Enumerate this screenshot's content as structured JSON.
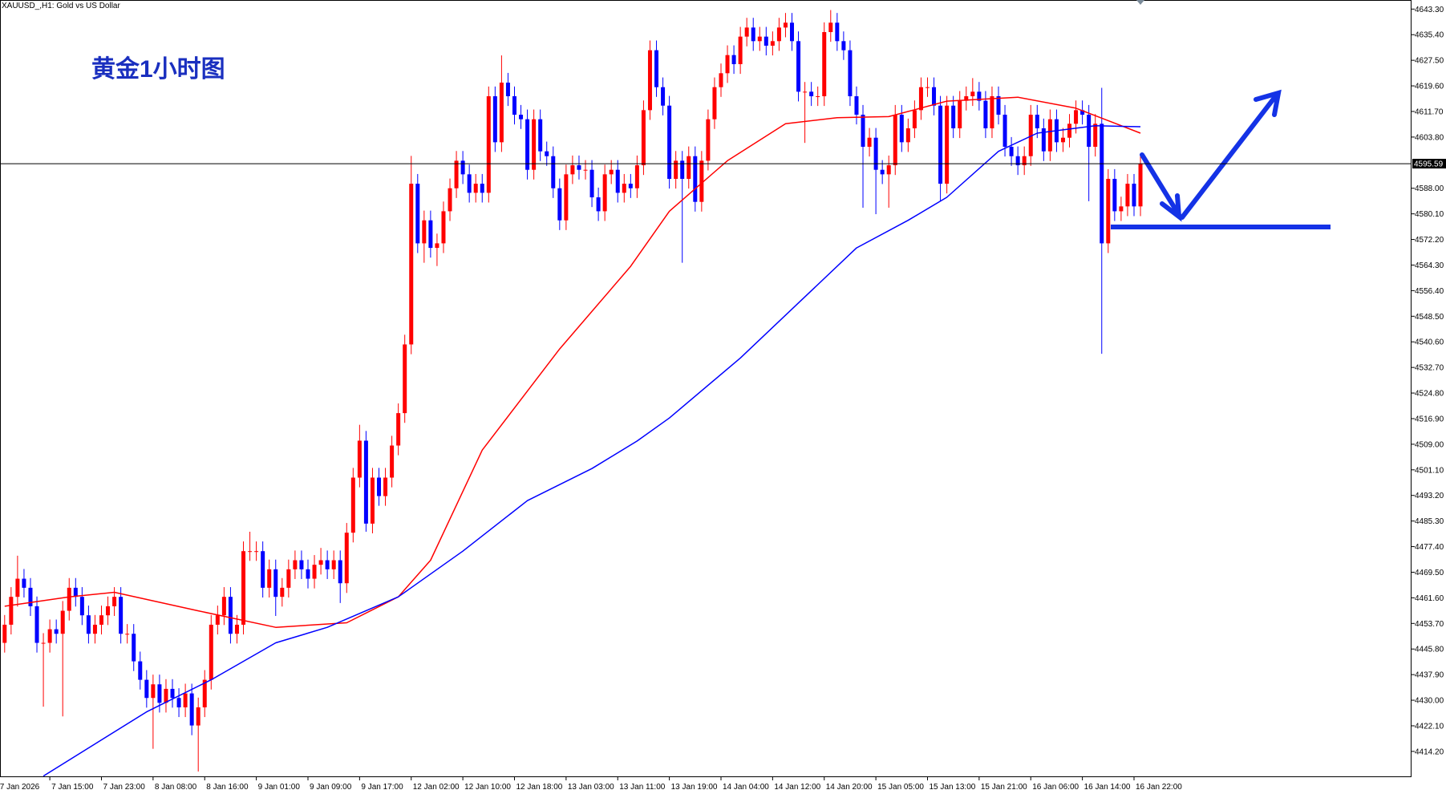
{
  "chart_data": {
    "type": "candlestick",
    "title": "XAUUSD_,H1:  Gold vs US Dollar",
    "annotation": "黄金1小时图",
    "up_color": "#ff0000",
    "down_color": "#0000ff",
    "open": [
      4447.7,
      4453.3,
      4461.9,
      4467.5,
      4464.7,
      4459.0,
      4447.7,
      4447.7,
      4451.9,
      4450.5,
      4457.6,
      4464.7,
      4461.9,
      4456.2,
      4450.5,
      4453.3,
      4456.2,
      4459.0,
      4461.9,
      4450.5,
      4450.5,
      4442.0,
      4436.3,
      4430.7,
      4434.9,
      4429.2,
      4433.5,
      4430.7,
      4427.8,
      4432.1,
      4422.2,
      4427.8,
      4436.3,
      4453.3,
      4456.2,
      4461.9,
      4450.5,
      4453.3,
      4476.0,
      4476.0,
      4476.0,
      4464.7,
      4470.4,
      4461.9,
      4464.7,
      4470.4,
      4473.2,
      4470.4,
      4467.5,
      4471.8,
      4473.2,
      4470.4,
      4473.2,
      4466.1,
      4481.7,
      4498.7,
      4510.1,
      4484.5,
      4498.7,
      4493.0,
      4498.7,
      4508.6,
      4518.6,
      4539.8,
      4589.4,
      4571.0,
      4578.1,
      4569.6,
      4571.0,
      4580.9,
      4588.0,
      4596.5,
      4592.3,
      4586.6,
      4589.4,
      4586.6,
      4616.4,
      4602.2,
      4620.6,
      4616.4,
      4610.7,
      4609.3,
      4593.7,
      4609.3,
      4599.4,
      4597.9,
      4588.0,
      4578.1,
      4592.3,
      4595.1,
      4593.7,
      4593.7,
      4585.2,
      4580.9,
      4592.3,
      4593.7,
      4586.6,
      4589.4,
      4588.0,
      4595.1,
      4612.1,
      4630.6,
      4619.2,
      4613.5,
      4590.9,
      4596.5,
      4590.9,
      4597.9,
      4583.8,
      4596.5,
      4609.3,
      4619.2,
      4623.5,
      4629.1,
      4626.3,
      4634.8,
      4637.6,
      4633.4,
      4634.8,
      4632.0,
      4633.4,
      4637.6,
      4639.1,
      4633.4,
      4617.8,
      4617.8,
      4616.4,
      4616.4,
      4636.2,
      4639.1,
      4633.4,
      4630.6,
      4616.4,
      4610.7,
      4600.8,
      4603.6,
      4593.7,
      4592.3,
      4595.1,
      4610.7,
      4602.2,
      4606.5,
      4612.1,
      4619.2,
      4619.2,
      4613.5,
      4589.4,
      4613.5,
      4606.5,
      4615.0,
      4616.4,
      4617.8,
      4615.0,
      4606.5,
      4616.4,
      4610.7,
      4600.8,
      4597.9,
      4595.1,
      4597.9,
      4610.7,
      4606.5,
      4599.4,
      4609.3,
      4602.2,
      4603.6,
      4607.9,
      4612.1,
      4610.7,
      4600.8,
      4607.9,
      4571.0,
      4590.9,
      4580.9,
      4582.4,
      4589.4,
      4582.4
    ],
    "high": [
      4456.3,
      4464.9,
      4474.6,
      4470.5,
      4467.7,
      4462.0,
      4450.7,
      4454.9,
      4454.9,
      4460.6,
      4467.7,
      4467.7,
      4464.9,
      4459.2,
      4456.3,
      4459.2,
      4462.0,
      4464.9,
      4464.9,
      4453.5,
      4453.5,
      4445.0,
      4439.3,
      4437.9,
      4437.9,
      4436.5,
      4436.5,
      4433.7,
      4435.1,
      4435.1,
      4430.8,
      4439.3,
      4456.3,
      4459.2,
      4464.9,
      4464.9,
      4456.3,
      4479.0,
      4482.0,
      4479.0,
      4479.0,
      4473.4,
      4473.4,
      4467.7,
      4473.4,
      4476.2,
      4476.2,
      4473.4,
      4474.8,
      4477.0,
      4476.2,
      4476.2,
      4476.2,
      4484.7,
      4501.7,
      4515.0,
      4513.1,
      4501.7,
      4501.7,
      4501.7,
      4511.6,
      4521.6,
      4542.8,
      4598.0,
      4592.4,
      4581.1,
      4581.1,
      4574.0,
      4583.9,
      4591.0,
      4599.5,
      4599.5,
      4595.3,
      4592.4,
      4592.4,
      4619.4,
      4619.4,
      4629.0,
      4623.6,
      4619.4,
      4613.7,
      4612.3,
      4612.3,
      4612.3,
      4602.4,
      4600.9,
      4591.0,
      4595.3,
      4598.1,
      4598.1,
      4596.7,
      4596.7,
      4588.2,
      4595.3,
      4596.7,
      4596.7,
      4592.4,
      4592.4,
      4598.1,
      4615.1,
      4633.6,
      4633.6,
      4622.2,
      4616.5,
      4599.5,
      4599.5,
      4600.9,
      4600.9,
      4599.5,
      4612.3,
      4622.2,
      4626.5,
      4632.1,
      4632.1,
      4637.8,
      4640.6,
      4640.6,
      4637.8,
      4637.8,
      4636.4,
      4640.6,
      4642.1,
      4642.1,
      4636.4,
      4620.8,
      4620.8,
      4619.4,
      4639.2,
      4643.0,
      4642.1,
      4636.4,
      4633.6,
      4619.4,
      4613.7,
      4606.6,
      4606.6,
      4596.7,
      4598.1,
      4613.7,
      4613.7,
      4609.5,
      4615.1,
      4622.2,
      4622.2,
      4622.2,
      4616.5,
      4616.5,
      4616.5,
      4618.0,
      4619.4,
      4622.0,
      4620.8,
      4618.0,
      4619.4,
      4619.4,
      4613.7,
      4603.8,
      4600.9,
      4600.9,
      4613.7,
      4613.7,
      4609.5,
      4612.3,
      4612.3,
      4606.6,
      4610.9,
      4615.1,
      4615.1,
      4613.7,
      4610.9,
      4619.0,
      4593.9,
      4593.9,
      4585.4,
      4592.4,
      4592.4,
      4598.6
    ],
    "low": [
      4444.7,
      4450.3,
      4458.9,
      4461.7,
      4456.0,
      4444.7,
      4428.0,
      4444.7,
      4447.5,
      4425.0,
      4454.6,
      4458.9,
      4453.2,
      4447.5,
      4447.5,
      4450.3,
      4453.2,
      4456.0,
      4447.5,
      4447.5,
      4439.0,
      4433.3,
      4427.7,
      4415.0,
      4426.2,
      4426.2,
      4427.7,
      4424.8,
      4424.8,
      4419.2,
      4408.0,
      4424.8,
      4433.3,
      4450.3,
      4453.2,
      4447.5,
      4447.5,
      4450.3,
      4473.0,
      4473.0,
      4461.7,
      4461.7,
      4456.0,
      4458.9,
      4461.7,
      4467.4,
      4467.4,
      4464.5,
      4464.5,
      4468.8,
      4467.4,
      4467.4,
      4460.0,
      4463.1,
      4478.7,
      4495.7,
      4482.0,
      4481.5,
      4490.0,
      4490.0,
      4495.7,
      4505.6,
      4515.6,
      4536.8,
      4568.0,
      4565.0,
      4566.6,
      4564.0,
      4568.0,
      4577.9,
      4585.0,
      4589.3,
      4583.6,
      4583.6,
      4583.6,
      4583.6,
      4599.2,
      4599.2,
      4613.4,
      4607.7,
      4606.3,
      4590.7,
      4590.7,
      4596.4,
      4594.9,
      4585.0,
      4575.1,
      4575.1,
      4589.3,
      4590.7,
      4590.7,
      4582.2,
      4577.9,
      4577.9,
      4589.3,
      4583.6,
      4583.6,
      4585.0,
      4585.0,
      4592.1,
      4609.1,
      4616.2,
      4610.5,
      4587.9,
      4587.9,
      4565.0,
      4587.9,
      4580.8,
      4580.8,
      4593.5,
      4606.3,
      4616.2,
      4620.5,
      4623.3,
      4623.3,
      4631.8,
      4630.4,
      4630.4,
      4629.0,
      4629.0,
      4630.4,
      4634.6,
      4630.4,
      4614.8,
      4602.0,
      4613.4,
      4613.4,
      4613.4,
      4633.2,
      4630.4,
      4627.6,
      4613.4,
      4607.7,
      4582.0,
      4597.8,
      4580.0,
      4589.3,
      4582.0,
      4592.1,
      4599.2,
      4599.2,
      4603.5,
      4609.1,
      4616.2,
      4610.5,
      4584.0,
      4586.4,
      4603.5,
      4603.5,
      4612.0,
      4613.4,
      4612.0,
      4603.5,
      4603.5,
      4607.7,
      4597.8,
      4594.9,
      4592.1,
      4592.1,
      4594.9,
      4603.5,
      4596.4,
      4596.4,
      4599.2,
      4599.2,
      4600.6,
      4604.9,
      4607.7,
      4584.0,
      4597.8,
      4536.9,
      4568.0,
      4577.9,
      4577.9,
      4579.4,
      4579.4,
      4579.4
    ],
    "close": [
      4453.3,
      4461.9,
      4467.5,
      4464.7,
      4459.0,
      4447.7,
      4447.7,
      4451.9,
      4450.5,
      4457.6,
      4464.7,
      4461.9,
      4456.2,
      4450.5,
      4453.3,
      4456.2,
      4459.0,
      4461.9,
      4450.5,
      4450.5,
      4442.0,
      4436.3,
      4430.7,
      4434.9,
      4429.2,
      4433.5,
      4430.7,
      4427.8,
      4432.1,
      4422.2,
      4427.8,
      4436.3,
      4453.3,
      4456.2,
      4461.9,
      4450.5,
      4453.3,
      4476.0,
      4476.0,
      4476.0,
      4464.7,
      4470.4,
      4461.9,
      4464.7,
      4470.4,
      4473.2,
      4470.4,
      4467.5,
      4471.8,
      4473.2,
      4470.4,
      4473.2,
      4466.1,
      4481.7,
      4498.7,
      4510.1,
      4484.5,
      4498.7,
      4493.0,
      4498.7,
      4508.6,
      4518.6,
      4539.8,
      4589.4,
      4571.0,
      4578.1,
      4569.6,
      4571.0,
      4580.9,
      4588.0,
      4596.5,
      4592.3,
      4586.6,
      4589.4,
      4586.6,
      4616.4,
      4602.2,
      4620.6,
      4616.4,
      4610.7,
      4609.3,
      4593.7,
      4609.3,
      4599.4,
      4597.9,
      4588.0,
      4578.1,
      4592.3,
      4595.1,
      4593.7,
      4593.7,
      4585.2,
      4580.9,
      4592.3,
      4593.7,
      4586.6,
      4589.4,
      4588.0,
      4595.1,
      4612.1,
      4630.6,
      4619.2,
      4613.5,
      4590.9,
      4596.5,
      4590.9,
      4597.9,
      4583.8,
      4596.5,
      4609.3,
      4619.2,
      4623.5,
      4629.1,
      4626.3,
      4634.8,
      4637.6,
      4633.4,
      4634.8,
      4632.0,
      4633.4,
      4637.6,
      4639.1,
      4633.4,
      4617.8,
      4617.8,
      4616.4,
      4616.4,
      4636.2,
      4639.1,
      4633.4,
      4630.6,
      4616.4,
      4610.7,
      4600.8,
      4603.6,
      4593.7,
      4592.3,
      4595.1,
      4610.7,
      4602.2,
      4606.5,
      4612.1,
      4619.2,
      4619.2,
      4613.5,
      4589.4,
      4613.5,
      4606.5,
      4615.0,
      4616.4,
      4617.8,
      4615.0,
      4606.5,
      4616.4,
      4610.7,
      4600.8,
      4597.9,
      4595.1,
      4597.9,
      4610.7,
      4606.5,
      4599.4,
      4609.3,
      4602.2,
      4603.6,
      4607.9,
      4612.1,
      4610.7,
      4600.8,
      4607.9,
      4571.0,
      4590.9,
      4580.9,
      4582.4,
      4589.4,
      4582.4,
      4595.59
    ],
    "lines": [
      {
        "color": "#ff0000",
        "x": [
          0,
          10,
          17,
          30,
          42,
          53,
          61,
          66,
          74,
          86,
          97,
          103,
          112,
          121,
          129,
          137,
          146,
          157,
          166,
          176
        ],
        "values": [
          4459.0,
          4461.9,
          4463.3,
          4457.6,
          4452.5,
          4453.9,
          4461.9,
          4473.2,
          4507.2,
          4538.4,
          4563.9,
          4580.9,
          4596.5,
          4607.9,
          4609.8,
          4610.1,
          4614.9,
          4616.1,
          4612.7,
          4605.0
        ]
      },
      {
        "color": "#0000ff",
        "x": [
          6,
          14,
          22,
          32,
          42,
          50,
          61,
          71,
          81,
          91,
          98,
          103,
          114,
          123,
          132,
          140,
          146,
          154,
          160,
          169,
          176
        ],
        "values": [
          4406.6,
          4416.5,
          4426.4,
          4436.3,
          4447.7,
          4452.5,
          4461.9,
          4476.0,
          4491.6,
          4501.5,
          4510.0,
          4517.1,
          4535.6,
          4552.6,
          4569.6,
          4578.1,
          4585.2,
          4599.4,
          4605.0,
          4607.3,
          4607.0
        ]
      }
    ],
    "bid_line": 4595.59,
    "xlim": [
      -0.72,
      218
    ],
    "ylim": [
      4406.5,
      4646.1
    ],
    "xticks": [
      {
        "value": -1,
        "label": "7 Jan 2026"
      },
      {
        "value": 7,
        "label": "7 Jan 15:00"
      },
      {
        "value": 15,
        "label": "7 Jan 23:00"
      },
      {
        "value": 23,
        "label": "8 Jan 08:00"
      },
      {
        "value": 31,
        "label": "8 Jan 16:00"
      },
      {
        "value": 39,
        "label": "9 Jan 01:00"
      },
      {
        "value": 47,
        "label": "9 Jan 09:00"
      },
      {
        "value": 55,
        "label": "9 Jan 17:00"
      },
      {
        "value": 63,
        "label": "12 Jan 02:00"
      },
      {
        "value": 71,
        "label": "12 Jan 10:00"
      },
      {
        "value": 79,
        "label": "12 Jan 18:00"
      },
      {
        "value": 87,
        "label": "13 Jan 03:00"
      },
      {
        "value": 95,
        "label": "13 Jan 11:00"
      },
      {
        "value": 103,
        "label": "13 Jan 19:00"
      },
      {
        "value": 111,
        "label": "14 Jan 04:00"
      },
      {
        "value": 119,
        "label": "14 Jan 12:00"
      },
      {
        "value": 127,
        "label": "14 Jan 20:00"
      },
      {
        "value": 135,
        "label": "15 Jan 05:00"
      },
      {
        "value": 143,
        "label": "15 Jan 13:00"
      },
      {
        "value": 151,
        "label": "15 Jan 21:00"
      },
      {
        "value": 159,
        "label": "16 Jan 06:00"
      },
      {
        "value": 167,
        "label": "16 Jan 14:00"
      },
      {
        "value": 175,
        "label": "16 Jan 22:00"
      }
    ],
    "yticks": [
      {
        "value": 4643.3,
        "label": "4643.30"
      },
      {
        "value": 4635.4,
        "label": "4635.40"
      },
      {
        "value": 4627.5,
        "label": "4627.50"
      },
      {
        "value": 4619.6,
        "label": "4619.60"
      },
      {
        "value": 4611.7,
        "label": "4611.70"
      },
      {
        "value": 4603.8,
        "label": "4603.80"
      },
      {
        "value": 4588,
        "label": "4588.00"
      },
      {
        "value": 4580.1,
        "label": "4580.10"
      },
      {
        "value": 4572.2,
        "label": "4572.20"
      },
      {
        "value": 4564.3,
        "label": "4564.30"
      },
      {
        "value": 4556.4,
        "label": "4556.40"
      },
      {
        "value": 4548.5,
        "label": "4548.50"
      },
      {
        "value": 4540.6,
        "label": "4540.60"
      },
      {
        "value": 4532.7,
        "label": "4532.70"
      },
      {
        "value": 4524.8,
        "label": "4524.80"
      },
      {
        "value": 4516.9,
        "label": "4516.90"
      },
      {
        "value": 4509,
        "label": "4509.00"
      },
      {
        "value": 4501.1,
        "label": "4501.10"
      },
      {
        "value": 4493.2,
        "label": "4493.20"
      },
      {
        "value": 4485.3,
        "label": "4485.30"
      },
      {
        "value": 4477.4,
        "label": "4477.40"
      },
      {
        "value": 4469.5,
        "label": "4469.50"
      },
      {
        "value": 4461.6,
        "label": "4461.60"
      },
      {
        "value": 4453.7,
        "label": "4453.70"
      },
      {
        "value": 4445.8,
        "label": "4445.80"
      },
      {
        "value": 4437.9,
        "label": "4437.90"
      },
      {
        "value": 4430,
        "label": "4430.00"
      },
      {
        "value": 4422.1,
        "label": "4422.10"
      },
      {
        "value": 4414.2,
        "label": "4414.20"
      }
    ]
  }
}
